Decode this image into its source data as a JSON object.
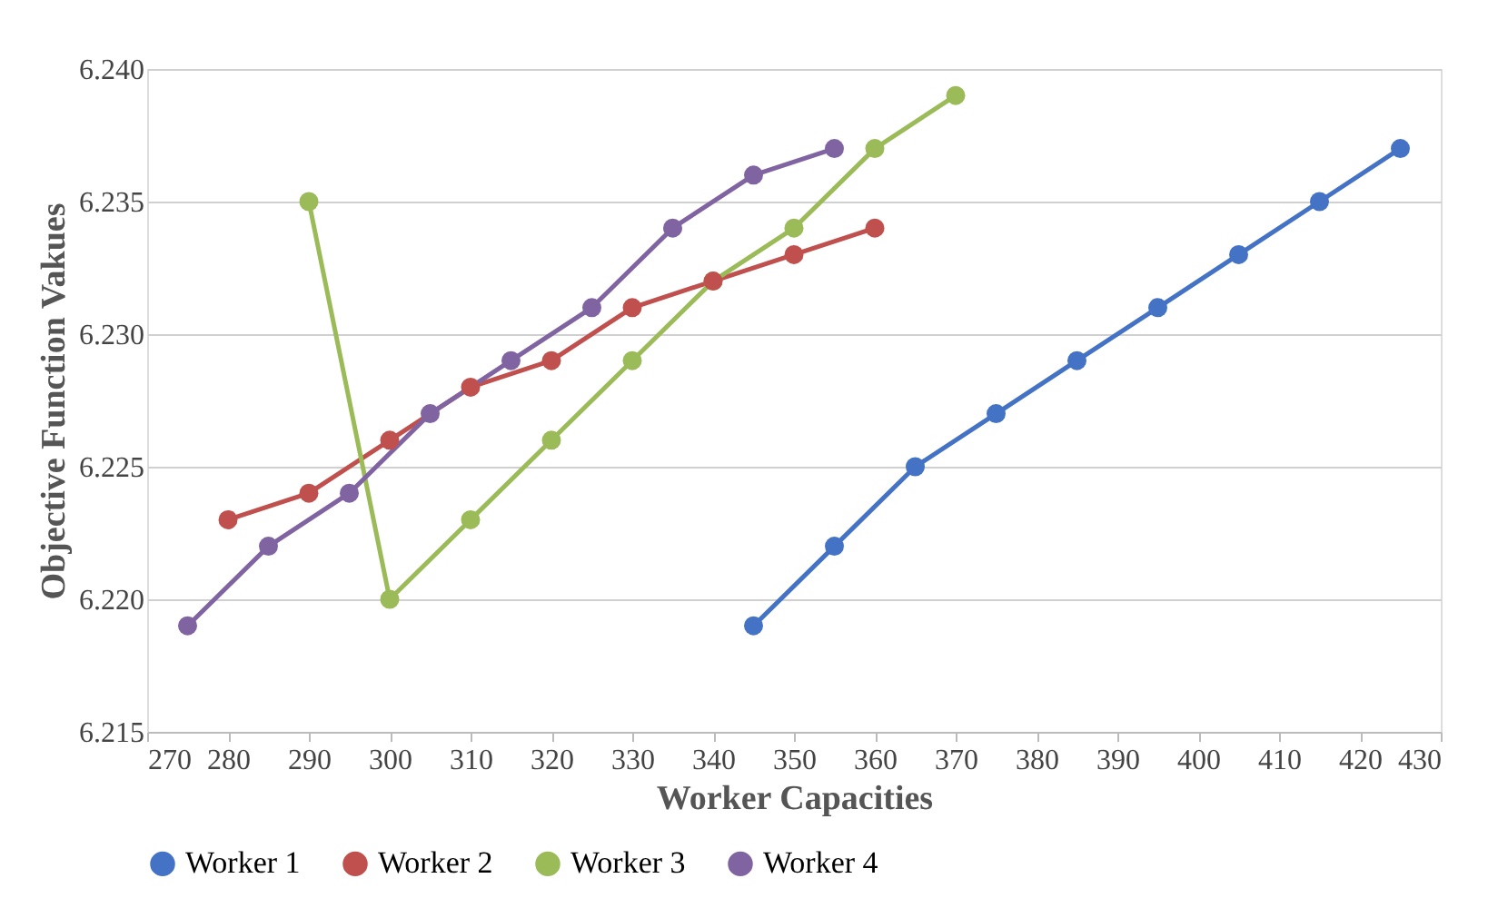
{
  "chart_data": {
    "type": "line",
    "xlabel": "Worker Capacities",
    "ylabel": "Objective Function Vakues",
    "xlim": [
      270,
      430
    ],
    "xticks": [
      270,
      280,
      290,
      300,
      310,
      320,
      330,
      340,
      350,
      360,
      370,
      380,
      390,
      400,
      410,
      420,
      430
    ],
    "ylim": [
      6.215,
      6.24
    ],
    "yticks": [
      6.215,
      {
        "value": 6.22,
        "label": "6.220"
      },
      6.225,
      {
        "value": 6.23,
        "label": "6.230"
      },
      6.235,
      {
        "value": 6.24,
        "label": "6.240"
      }
    ],
    "grid": "y",
    "legend": "bottom",
    "marker": "circle",
    "line_style": "solid",
    "series": [
      {
        "name": "Worker 1",
        "color": "#4472c4",
        "x": [
          345,
          355,
          365,
          375,
          385,
          395,
          405,
          415,
          425
        ],
        "values": [
          6.219,
          6.222,
          6.225,
          6.227,
          6.229,
          6.231,
          6.233,
          6.235,
          6.237
        ]
      },
      {
        "name": "Worker 2",
        "color": "#c0504d",
        "x": [
          280,
          290,
          300,
          310,
          320,
          330,
          340,
          350,
          360
        ],
        "values": [
          6.223,
          6.224,
          6.226,
          6.228,
          6.229,
          6.231,
          6.232,
          6.233,
          6.234
        ]
      },
      {
        "name": "Worker 3",
        "color": "#9bbb59",
        "x": [
          290,
          300,
          310,
          320,
          330,
          340,
          350,
          360,
          370
        ],
        "values": [
          6.235,
          6.22,
          6.223,
          6.226,
          6.229,
          6.232,
          6.234,
          6.237,
          6.239
        ]
      },
      {
        "name": "Worker 4",
        "color": "#8064a2",
        "x": [
          275,
          285,
          295,
          305,
          315,
          325,
          335,
          345,
          355
        ],
        "values": [
          6.219,
          6.222,
          6.224,
          6.227,
          6.229,
          6.231,
          6.234,
          6.236,
          6.237
        ]
      }
    ]
  }
}
